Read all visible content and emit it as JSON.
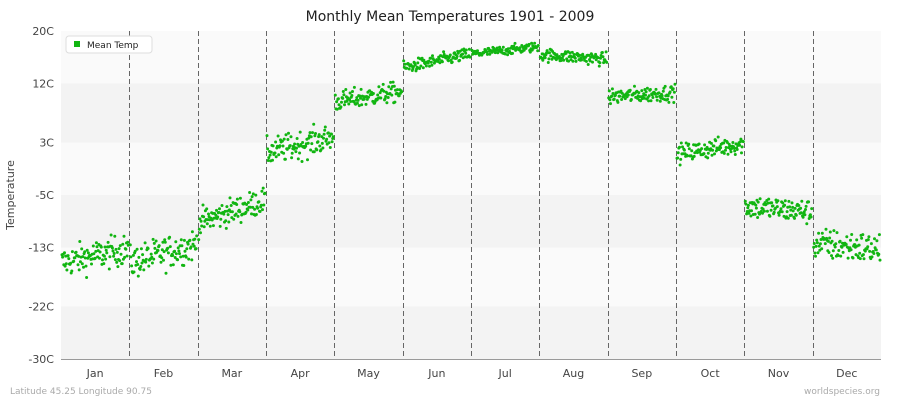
{
  "chart_data": {
    "type": "scatter",
    "title": "Monthly Mean Temperatures 1901 - 2009",
    "xlabel": "",
    "ylabel": "Temperature",
    "ylim": [
      -30,
      20
    ],
    "y_ticks": [
      -30,
      -22,
      -13,
      -5,
      3,
      12,
      20
    ],
    "y_tick_labels": [
      "-30C",
      "-22C",
      "-13C",
      "-5C",
      "3C",
      "12C",
      "20C"
    ],
    "categories": [
      "Jan",
      "Feb",
      "Mar",
      "Apr",
      "May",
      "Jun",
      "Jul",
      "Aug",
      "Sep",
      "Oct",
      "Nov",
      "Dec"
    ],
    "grid": true,
    "legend_position": "top-left",
    "series": [
      {
        "name": "Mean Temp",
        "color": "#11b511",
        "per_month": [
          {
            "month": "Jan",
            "start": -15.3,
            "end": -13.2,
            "spread": 2.9
          },
          {
            "month": "Feb",
            "start": -15.3,
            "end": -12.5,
            "spread": 3.1
          },
          {
            "month": "Mar",
            "start": -9.2,
            "end": -5.8,
            "spread": 2.5
          },
          {
            "month": "Apr",
            "start": 1.5,
            "end": 3.8,
            "spread": 2.6
          },
          {
            "month": "May",
            "start": 9.2,
            "end": 10.8,
            "spread": 1.9
          },
          {
            "month": "Jun",
            "start": 14.4,
            "end": 16.5,
            "spread": 1.2
          },
          {
            "month": "Jul",
            "start": 16.5,
            "end": 17.6,
            "spread": 0.9
          },
          {
            "month": "Aug",
            "start": 16.4,
            "end": 15.7,
            "spread": 1.2
          },
          {
            "month": "Sep",
            "start": 10.0,
            "end": 10.6,
            "spread": 1.5
          },
          {
            "month": "Oct",
            "start": 1.3,
            "end": 2.8,
            "spread": 1.8
          },
          {
            "month": "Nov",
            "start": -6.7,
            "end": -7.6,
            "spread": 2.3
          },
          {
            "month": "Dec",
            "start": -12.4,
            "end": -13.3,
            "spread": 3.0
          }
        ]
      }
    ]
  },
  "footer": {
    "location": "Latitude 45.25 Longitude 90.75",
    "site": "worldspecies.org"
  }
}
